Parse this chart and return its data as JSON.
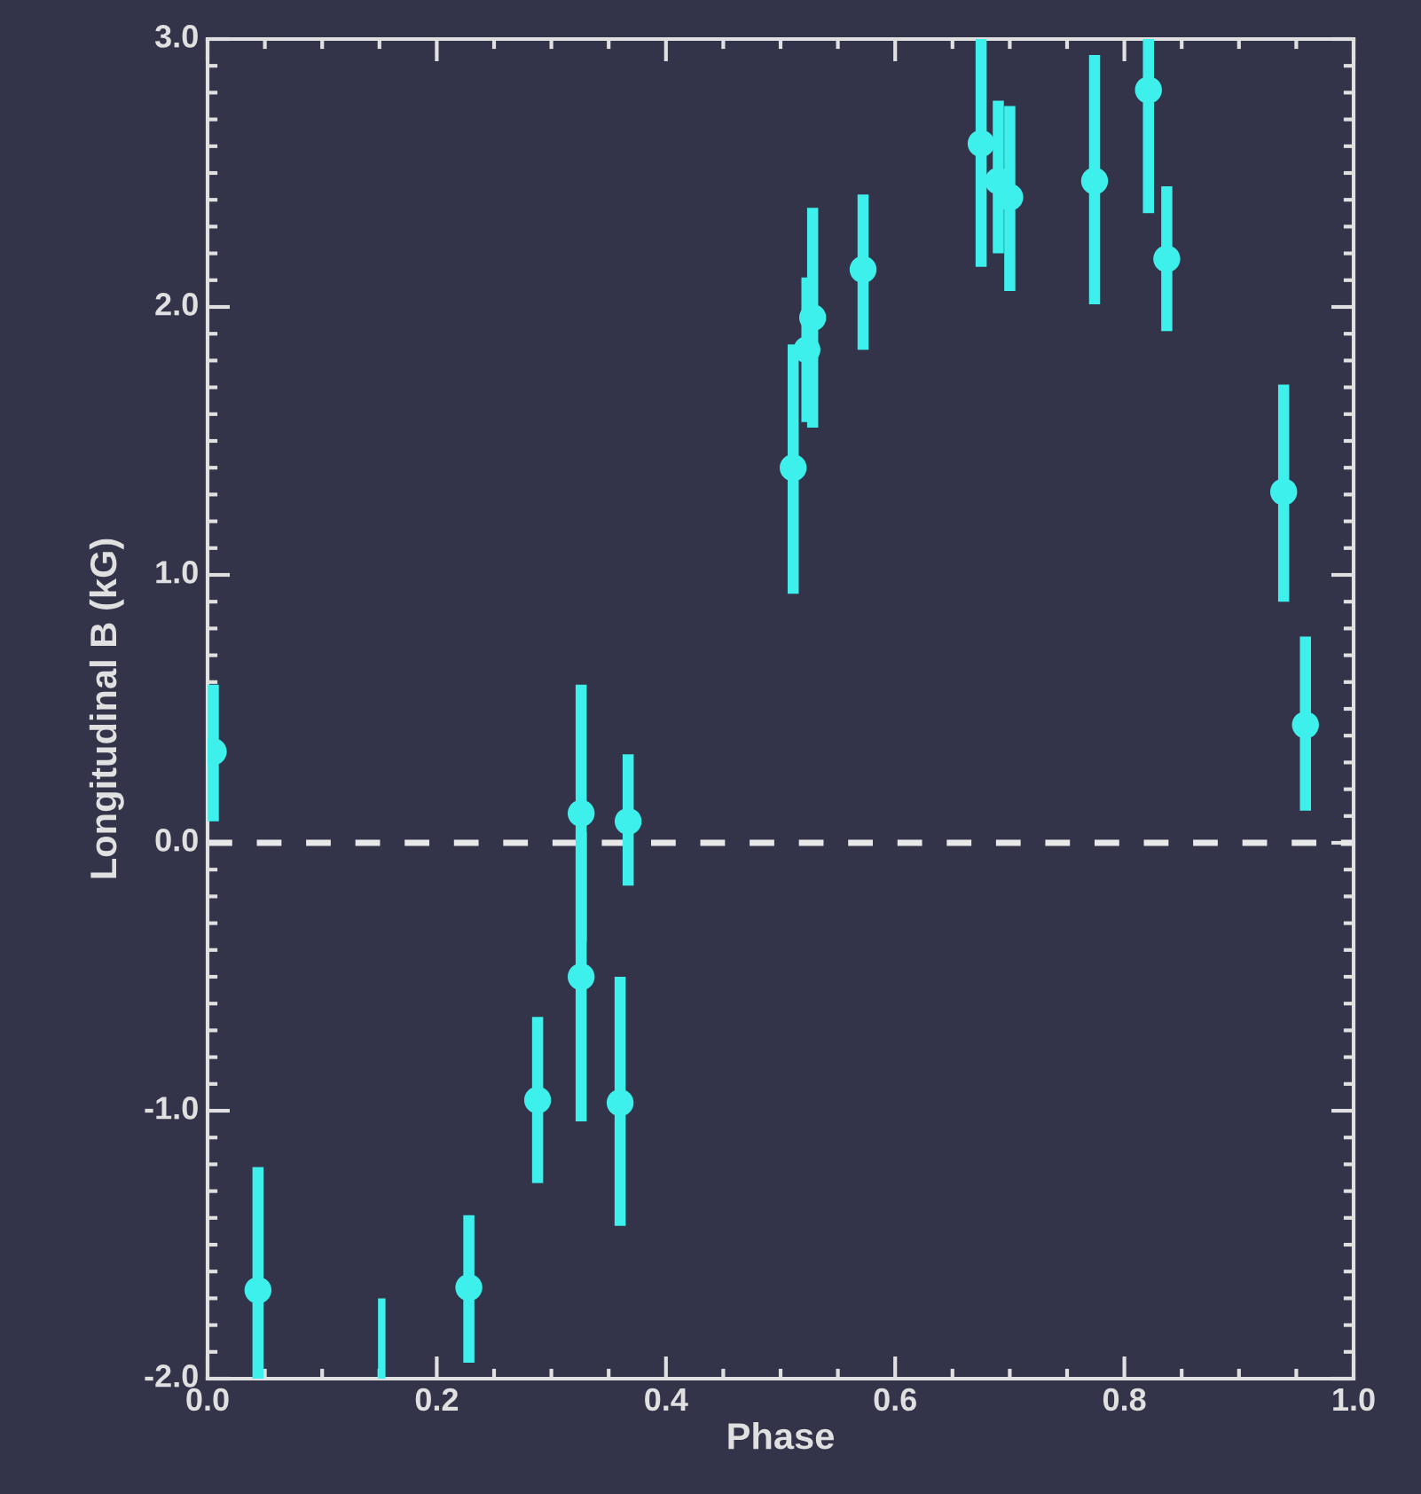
{
  "chart_data": {
    "type": "scatter",
    "xlabel": "Phase",
    "ylabel": "Longitudinal B (kG)",
    "xlim": [
      0.0,
      1.0
    ],
    "ylim": [
      -2.0,
      3.0
    ],
    "xticks": [
      {
        "value": 0.0,
        "label": "0.0"
      },
      {
        "value": 0.2,
        "label": "0.2"
      },
      {
        "value": 0.4,
        "label": "0.4"
      },
      {
        "value": 0.6,
        "label": "0.6"
      },
      {
        "value": 0.8,
        "label": "0.8"
      },
      {
        "value": 1.0,
        "label": "1.0"
      }
    ],
    "yticks": [
      {
        "value": -2.0,
        "label": "-2.0"
      },
      {
        "value": -1.0,
        "label": "-1.0"
      },
      {
        "value": 0.0,
        "label": "0.0"
      },
      {
        "value": 1.0,
        "label": "1.0"
      },
      {
        "value": 2.0,
        "label": "2.0"
      },
      {
        "value": 3.0,
        "label": "3.0"
      }
    ],
    "marker": "circle",
    "grid": false,
    "ref_lines": [
      {
        "axis": "y",
        "value": 0.0,
        "color": "#e8e8e8",
        "line_style": "dashed"
      }
    ],
    "series": [
      {
        "color": "#3ef0ec",
        "x": [
          0.005,
          0.044,
          0.228,
          0.288,
          0.326,
          0.326,
          0.36,
          0.367,
          0.511,
          0.523,
          0.528,
          0.572,
          0.675,
          0.69,
          0.7,
          0.774,
          0.821,
          0.837,
          0.939,
          0.958
        ],
        "values": [
          0.34,
          -1.67,
          -1.66,
          -0.96,
          0.11,
          -0.5,
          -0.97,
          0.08,
          1.4,
          1.84,
          1.96,
          2.14,
          2.61,
          2.47,
          2.41,
          2.47,
          2.81,
          2.18,
          1.31,
          0.44
        ],
        "errors": [
          [
            0.08,
            0.59
          ],
          [
            -2.0,
            -1.21
          ],
          [
            -1.94,
            -1.39
          ],
          [
            -1.27,
            -0.65
          ],
          [
            -0.37,
            0.59
          ],
          [
            -1.04,
            0.04
          ],
          [
            -1.43,
            -0.5
          ],
          [
            -0.16,
            0.33
          ],
          [
            0.93,
            1.86
          ],
          [
            1.57,
            2.11
          ],
          [
            1.55,
            2.37
          ],
          [
            1.84,
            2.42
          ],
          [
            2.15,
            3.0
          ],
          [
            2.2,
            2.77
          ],
          [
            2.06,
            2.75
          ],
          [
            2.01,
            2.94
          ],
          [
            2.35,
            3.0
          ],
          [
            1.91,
            2.45
          ],
          [
            0.9,
            1.71
          ],
          [
            0.12,
            0.77
          ]
        ]
      },
      {
        "type": "bar",
        "color": "#3ef0ec",
        "x": [
          0.152
        ],
        "base": [
          -2.0
        ],
        "values": [
          0.3
        ]
      }
    ]
  }
}
